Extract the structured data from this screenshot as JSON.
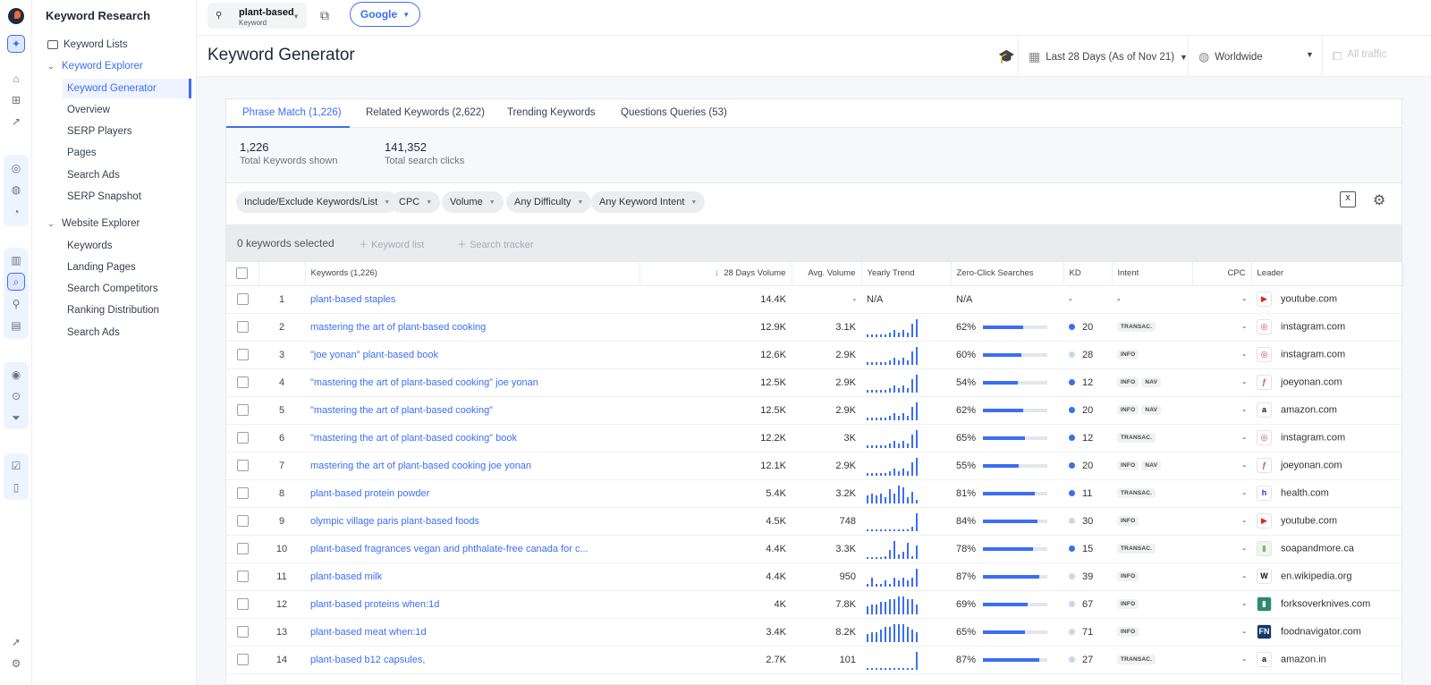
{
  "app": {
    "title": "Keyword Research"
  },
  "sidebar": {
    "keyword_lists": "Keyword Lists",
    "keyword_explorer": "Keyword Explorer",
    "explorer_items": [
      "Keyword Generator",
      "Overview",
      "SERP Players",
      "Pages",
      "Search Ads",
      "SERP Snapshot"
    ],
    "website_explorer": "Website Explorer",
    "website_items": [
      "Keywords",
      "Landing Pages",
      "Search Competitors",
      "Ranking Distribution",
      "Search Ads"
    ]
  },
  "topbar": {
    "keyword": "plant-based",
    "keyword_type": "Keyword",
    "engine": "Google"
  },
  "header": {
    "title": "Keyword Generator",
    "date_range": "Last 28 Days (As of Nov 21)",
    "location": "Worldwide",
    "traffic": "All traffic"
  },
  "tabs": [
    "Phrase Match (1,226)",
    "Related Keywords (2,622)",
    "Trending Keywords",
    "Questions Queries (53)"
  ],
  "stats": [
    {
      "value": "1,226",
      "label": "Total Keywords shown"
    },
    {
      "value": "141,352",
      "label": "Total search clicks"
    }
  ],
  "filters": [
    "Include/Exclude Keywords/List",
    "CPC",
    "Volume",
    "Any Difficulty",
    "Any Keyword Intent"
  ],
  "selection": {
    "text": "0 keywords selected",
    "action1": "Keyword list",
    "action2": "Search tracker"
  },
  "columns": [
    "Keywords (1,226)",
    "28 Days Volume",
    "Avg. Volume",
    "Yearly Trend",
    "Zero-Click Searches",
    "KD",
    "Intent",
    "CPC",
    "Leader"
  ],
  "colors": {
    "accent": "#3b6ef5",
    "kd_dot": "#3b6ef5",
    "kd_dot_light": "#c9d6f5"
  },
  "rows": [
    {
      "n": "1",
      "kw": "plant-based staples",
      "vol": "14.4K",
      "avg": "-",
      "trend_text": "N/A",
      "trend": [],
      "zero": "N/A",
      "zero_pct": 0,
      "kd": "-",
      "kd_dot": "none",
      "intent": [
        "-"
      ],
      "cpc": "-",
      "leader": "youtube.com",
      "fav": "yt"
    },
    {
      "n": "2",
      "kw": "mastering the art of plant-based cooking",
      "vol": "12.9K",
      "avg": "3.1K",
      "trend_text": "",
      "trend": [
        1,
        1,
        1,
        1,
        1,
        2,
        3,
        2,
        3,
        2,
        6,
        8
      ],
      "zero": "62%",
      "zero_pct": 62,
      "kd": "20",
      "kd_dot": "dark",
      "intent": [
        "TRANSAC."
      ],
      "cpc": "-",
      "leader": "instagram.com",
      "fav": "ig"
    },
    {
      "n": "3",
      "kw": "\"joe yonan\" plant-based book",
      "vol": "12.6K",
      "avg": "2.9K",
      "trend_text": "",
      "trend": [
        1,
        1,
        1,
        1,
        1,
        2,
        3,
        2,
        3,
        2,
        6,
        8
      ],
      "zero": "60%",
      "zero_pct": 60,
      "kd": "28",
      "kd_dot": "light",
      "intent": [
        "INFO"
      ],
      "cpc": "-",
      "leader": "instagram.com",
      "fav": "ig"
    },
    {
      "n": "4",
      "kw": "\"mastering the art of plant-based cooking\" joe yonan",
      "vol": "12.5K",
      "avg": "2.9K",
      "trend_text": "",
      "trend": [
        1,
        1,
        1,
        1,
        1,
        2,
        3,
        2,
        3,
        2,
        6,
        8
      ],
      "zero": "54%",
      "zero_pct": 54,
      "kd": "12",
      "kd_dot": "dark",
      "intent": [
        "INFO",
        "NAV"
      ],
      "cpc": "-",
      "leader": "joeyonan.com",
      "fav": "jy"
    },
    {
      "n": "5",
      "kw": "\"mastering the art of plant-based cooking\"",
      "vol": "12.5K",
      "avg": "2.9K",
      "trend_text": "",
      "trend": [
        1,
        1,
        1,
        1,
        1,
        2,
        3,
        2,
        3,
        2,
        6,
        8
      ],
      "zero": "62%",
      "zero_pct": 62,
      "kd": "20",
      "kd_dot": "dark",
      "intent": [
        "INFO",
        "NAV"
      ],
      "cpc": "-",
      "leader": "amazon.com",
      "fav": "am"
    },
    {
      "n": "6",
      "kw": "\"mastering the art of plant-based cooking\" book",
      "vol": "12.2K",
      "avg": "3K",
      "trend_text": "",
      "trend": [
        1,
        1,
        1,
        1,
        1,
        2,
        3,
        2,
        3,
        2,
        6,
        8
      ],
      "zero": "65%",
      "zero_pct": 65,
      "kd": "12",
      "kd_dot": "dark",
      "intent": [
        "TRANSAC."
      ],
      "cpc": "-",
      "leader": "instagram.com",
      "fav": "ig"
    },
    {
      "n": "7",
      "kw": "mastering the art of plant-based cooking joe yonan",
      "vol": "12.1K",
      "avg": "2.9K",
      "trend_text": "",
      "trend": [
        1,
        1,
        1,
        1,
        1,
        2,
        3,
        2,
        3,
        2,
        6,
        8
      ],
      "zero": "55%",
      "zero_pct": 55,
      "kd": "20",
      "kd_dot": "dark",
      "intent": [
        "INFO",
        "NAV"
      ],
      "cpc": "-",
      "leader": "joeyonan.com",
      "fav": "jy"
    },
    {
      "n": "8",
      "kw": "plant-based protein powder",
      "vol": "5.4K",
      "avg": "3.2K",
      "trend_text": "",
      "trend": [
        4,
        5,
        4,
        5,
        3,
        7,
        5,
        9,
        8,
        3,
        6,
        2
      ],
      "zero": "81%",
      "zero_pct": 81,
      "kd": "11",
      "kd_dot": "dark",
      "intent": [
        "TRANSAC."
      ],
      "cpc": "-",
      "leader": "health.com",
      "fav": "h"
    },
    {
      "n": "9",
      "kw": "olympic village paris plant-based foods",
      "vol": "4.5K",
      "avg": "748",
      "trend_text": "",
      "trend": [
        0,
        0,
        0,
        0,
        0,
        0,
        0,
        0,
        0,
        0,
        2,
        8
      ],
      "zero": "84%",
      "zero_pct": 84,
      "kd": "30",
      "kd_dot": "light",
      "intent": [
        "INFO"
      ],
      "cpc": "-",
      "leader": "youtube.com",
      "fav": "yt"
    },
    {
      "n": "10",
      "kw": "plant-based fragrances vegan and phthalate-free canada for c...",
      "vol": "4.4K",
      "avg": "3.3K",
      "trend_text": "",
      "trend": [
        0,
        0,
        0,
        0,
        1,
        4,
        8,
        2,
        3,
        7,
        1,
        6
      ],
      "zero": "78%",
      "zero_pct": 78,
      "kd": "15",
      "kd_dot": "dark",
      "intent": [
        "TRANSAC."
      ],
      "cpc": "-",
      "leader": "soapandmore.ca",
      "fav": "sm"
    },
    {
      "n": "11",
      "kw": "plant-based milk",
      "vol": "4.4K",
      "avg": "950",
      "trend_text": "",
      "trend": [
        1,
        3,
        1,
        1,
        2,
        1,
        3,
        2,
        3,
        2,
        3,
        6
      ],
      "zero": "87%",
      "zero_pct": 87,
      "kd": "39",
      "kd_dot": "light",
      "intent": [
        "INFO"
      ],
      "cpc": "-",
      "leader": "en.wikipedia.org",
      "fav": "w"
    },
    {
      "n": "12",
      "kw": "plant-based proteins when:1d",
      "vol": "4K",
      "avg": "7.8K",
      "trend_text": "",
      "trend": [
        3,
        4,
        4,
        5,
        5,
        6,
        6,
        7,
        7,
        6,
        6,
        4
      ],
      "zero": "69%",
      "zero_pct": 69,
      "kd": "67",
      "kd_dot": "light",
      "intent": [
        "INFO"
      ],
      "cpc": "-",
      "leader": "forksoverknives.com",
      "fav": "fk"
    },
    {
      "n": "13",
      "kw": "plant-based meat when:1d",
      "vol": "3.4K",
      "avg": "8.2K",
      "trend_text": "",
      "trend": [
        3,
        4,
        4,
        5,
        6,
        6,
        7,
        7,
        7,
        6,
        5,
        4
      ],
      "zero": "65%",
      "zero_pct": 65,
      "kd": "71",
      "kd_dot": "light",
      "intent": [
        "INFO"
      ],
      "cpc": "-",
      "leader": "foodnavigator.com",
      "fav": "fn"
    },
    {
      "n": "14",
      "kw": "plant-based b12 capsules,",
      "vol": "2.7K",
      "avg": "101",
      "trend_text": "",
      "trend": [
        0,
        0,
        0,
        0,
        0,
        0,
        0,
        0,
        0,
        0,
        0,
        8
      ],
      "zero": "87%",
      "zero_pct": 87,
      "kd": "27",
      "kd_dot": "light",
      "intent": [
        "TRANSAC."
      ],
      "cpc": "-",
      "leader": "amazon.in",
      "fav": "am"
    }
  ]
}
